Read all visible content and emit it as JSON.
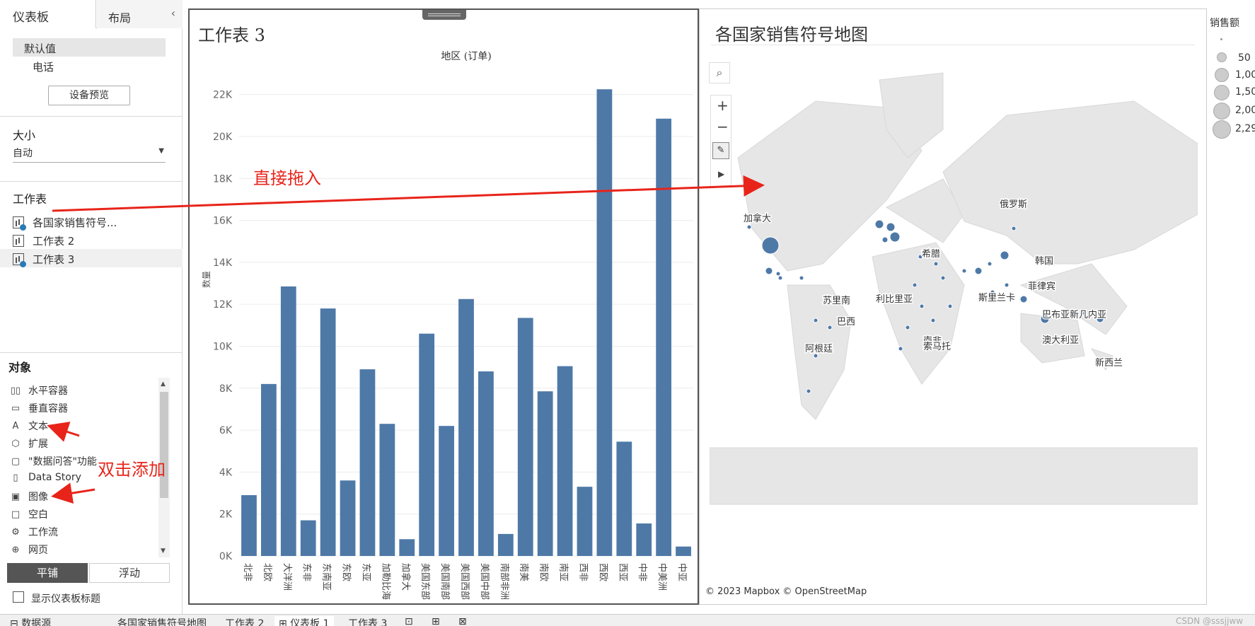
{
  "left_panel": {
    "tab_dashboard": "仪表板",
    "tab_layout": "布局",
    "collapse_icon": "chevron-left",
    "device_default": "默认值",
    "device_phone": "电话",
    "device_preview_button": "设备预览",
    "size_title": "大小",
    "size_value": "自动",
    "worksheets_title": "工作表",
    "worksheets": [
      "各国家销售符号...",
      "工作表 2",
      "工作表 3"
    ],
    "objects_title": "对象",
    "objects": [
      {
        "icon": "horizontal-container-icon",
        "glyph": "▯▯",
        "label": "水平容器"
      },
      {
        "icon": "vertical-container-icon",
        "glyph": "▭",
        "label": "垂直容器"
      },
      {
        "icon": "text-icon",
        "glyph": "A",
        "label": "文本"
      },
      {
        "icon": "extension-icon",
        "glyph": "⬡",
        "label": "扩展"
      },
      {
        "icon": "ask-data-icon",
        "glyph": "▢",
        "label": "\"数据问答\"功能"
      },
      {
        "icon": "data-story-icon",
        "glyph": "▯",
        "label": "Data Story"
      },
      {
        "icon": "image-icon",
        "glyph": "▣",
        "label": "图像"
      },
      {
        "icon": "blank-icon",
        "glyph": "□",
        "label": "空白"
      },
      {
        "icon": "workflow-icon",
        "glyph": "⚙",
        "label": "工作流"
      },
      {
        "icon": "web-page-icon",
        "glyph": "⊕",
        "label": "网页"
      }
    ],
    "tiled_button": "平铺",
    "floating_button": "浮动",
    "show_title_checkbox": "显示仪表板标题"
  },
  "annotations": {
    "drag_in": "直接拖入",
    "double_click_add": "双击添加"
  },
  "colors": {
    "bar": "#4e79a7",
    "annotation": "#e8241a",
    "tiled_bg": "#555555"
  },
  "chart_sheet": {
    "title": "工作表 3"
  },
  "chart_data": {
    "type": "bar",
    "title": "地区 (订单)",
    "xlabel": "",
    "ylabel": "数量",
    "ylim": [
      0,
      23000
    ],
    "yticks": [
      "0K",
      "2K",
      "4K",
      "6K",
      "8K",
      "10K",
      "12K",
      "14K",
      "16K",
      "18K",
      "20K",
      "22K"
    ],
    "categories": [
      "北非",
      "北欧",
      "大洋洲",
      "东非",
      "东南亚",
      "东欧",
      "东亚",
      "加勒比海",
      "加拿大",
      "美国东部",
      "美国南部",
      "美国西部",
      "美国中部",
      "南部非洲",
      "南美",
      "南欧",
      "南亚",
      "西非",
      "西欧",
      "西亚",
      "中非",
      "中美洲",
      "中亚"
    ],
    "values": [
      2900,
      8200,
      12850,
      1700,
      11800,
      3600,
      8900,
      6300,
      800,
      10600,
      6200,
      12250,
      8800,
      1050,
      11350,
      7850,
      9050,
      3300,
      22250,
      5450,
      1550,
      20850,
      450
    ]
  },
  "map_sheet": {
    "title": "各国家销售符号地图",
    "attribution": "© 2023 Mapbox © OpenStreetMap",
    "labels": [
      "加拿大",
      "俄罗斯",
      "韩国",
      "菲律宾",
      "希腊",
      "利比里亚",
      "斯里兰卡",
      "苏里南",
      "巴西",
      "巴布亚新几内亚",
      "澳大利亚",
      "新西兰",
      "阿根廷",
      "南非",
      "索马托"
    ]
  },
  "legend": {
    "title": "销售额",
    "items": [
      "50",
      "1,00",
      "1,50",
      "2,00",
      "2,29"
    ]
  },
  "bottom_tabs": [
    "数据源",
    "各国家销售符号地图",
    "工作表 2",
    "仪表板 1",
    "工作表 3"
  ],
  "watermark": "CSDN @sssjjww"
}
